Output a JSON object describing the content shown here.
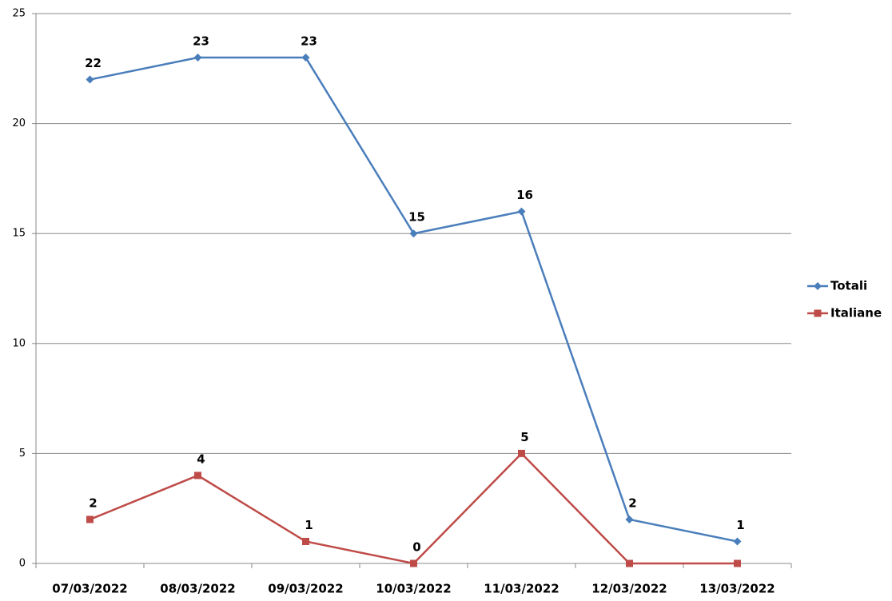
{
  "chart_data": {
    "type": "line",
    "categories": [
      "07/03/2022",
      "08/03/2022",
      "09/03/2022",
      "10/03/2022",
      "11/03/2022",
      "12/03/2022",
      "13/03/2022"
    ],
    "series": [
      {
        "name": "Totali",
        "color": "#4a7ebb",
        "marker": "diamond",
        "values": [
          22,
          23,
          23,
          15,
          16,
          2,
          1
        ]
      },
      {
        "name": "Italiane",
        "color": "#be4b48",
        "marker": "square",
        "values": [
          2,
          4,
          1,
          0,
          5,
          0,
          0
        ]
      }
    ],
    "value_labels_shown": [
      [
        true,
        true,
        true,
        true,
        true,
        true,
        true
      ],
      [
        true,
        true,
        true,
        true,
        true,
        false,
        false
      ]
    ],
    "ylim": [
      0,
      25
    ],
    "yticks": [
      0,
      5,
      10,
      15,
      20,
      25
    ],
    "grid": true,
    "legend": "right"
  }
}
